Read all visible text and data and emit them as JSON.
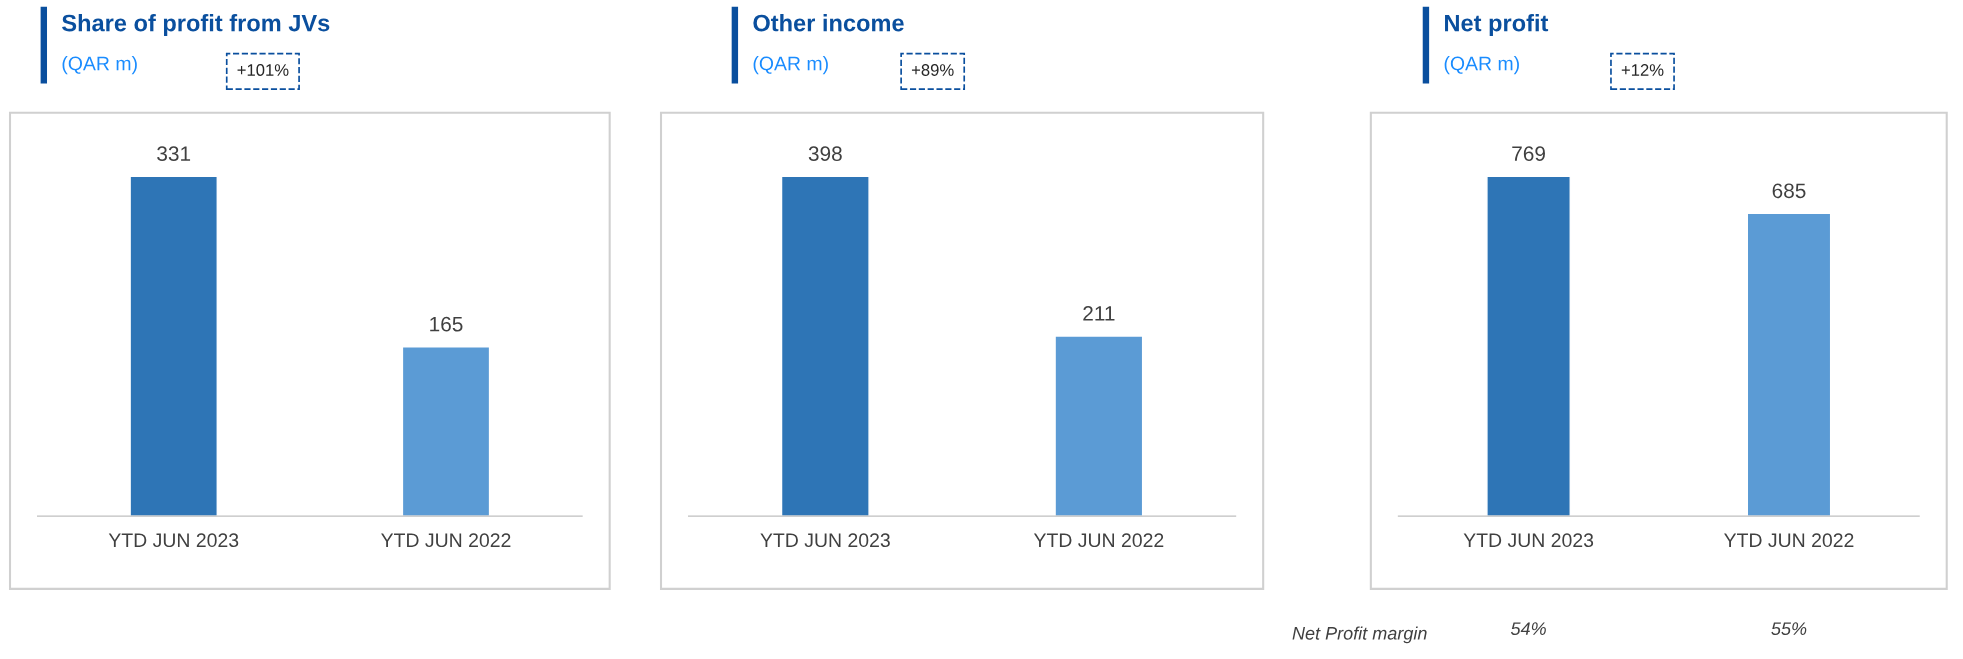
{
  "chart_data": [
    {
      "type": "bar",
      "title": "Share of profit from JVs",
      "subtitle": "(QAR m)",
      "categories": [
        "YTD JUN 2023",
        "YTD JUN 2022"
      ],
      "values": [
        331,
        165
      ],
      "colors": [
        "#2e75b6",
        "#5b9bd5"
      ],
      "data_labels": true,
      "annotations": [
        "+101%"
      ]
    },
    {
      "type": "bar",
      "title": "Other income",
      "subtitle": "(QAR m)",
      "categories": [
        "YTD JUN 2023",
        "YTD JUN 2022"
      ],
      "values": [
        398,
        211
      ],
      "colors": [
        "#2e75b6",
        "#5b9bd5"
      ],
      "data_labels": true,
      "annotations": [
        "+89%"
      ]
    },
    {
      "type": "bar",
      "title": "Net profit",
      "subtitle": "(QAR m)",
      "categories": [
        "YTD JUN 2023",
        "YTD JUN 2022"
      ],
      "values": [
        769,
        685
      ],
      "colors": [
        "#2e75b6",
        "#5b9bd5"
      ],
      "data_labels": true,
      "annotations": [
        "+12%",
        "Net Profit margin",
        "54%",
        "55%"
      ]
    }
  ]
}
